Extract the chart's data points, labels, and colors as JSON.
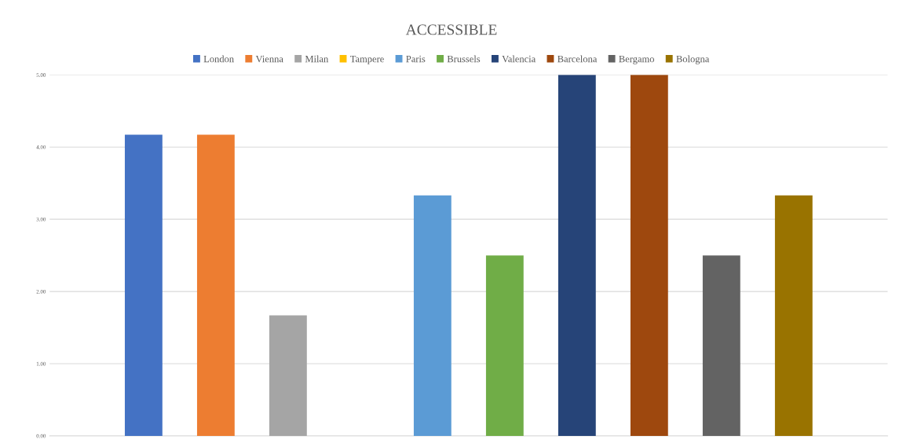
{
  "chart_data": {
    "type": "bar",
    "title": "ACCESSIBLE",
    "categories": [
      null
    ],
    "series": [
      {
        "name": "London",
        "color": "#4472c4",
        "values": [
          4.17
        ]
      },
      {
        "name": "Vienna",
        "color": "#ed7d31",
        "values": [
          4.17
        ]
      },
      {
        "name": "Milan",
        "color": "#a5a5a5",
        "values": [
          1.67
        ]
      },
      {
        "name": "Tampere",
        "color": "#ffc000",
        "values": [
          0
        ]
      },
      {
        "name": "Paris",
        "color": "#5b9bd5",
        "values": [
          3.33
        ]
      },
      {
        "name": "Brussels",
        "color": "#70ad47",
        "values": [
          2.5
        ]
      },
      {
        "name": "Valencia",
        "color": "#264478",
        "values": [
          5
        ]
      },
      {
        "name": "Barcelona",
        "color": "#9e480e",
        "values": [
          5
        ]
      },
      {
        "name": "Bergamo",
        "color": "#636363",
        "values": [
          2.5
        ]
      },
      {
        "name": "Bologna",
        "color": "#997300",
        "values": [
          3.33
        ]
      }
    ],
    "ylim": [
      0,
      5
    ],
    "yticks": [
      {
        "value": 0,
        "label": "0.00"
      },
      {
        "value": 1,
        "label": "1.00"
      },
      {
        "value": 2,
        "label": "2.00"
      },
      {
        "value": 3,
        "label": "3.00"
      },
      {
        "value": 4,
        "label": "4.00"
      },
      {
        "value": 5,
        "label": "5.00"
      }
    ],
    "grid": "y",
    "legend": "top"
  }
}
